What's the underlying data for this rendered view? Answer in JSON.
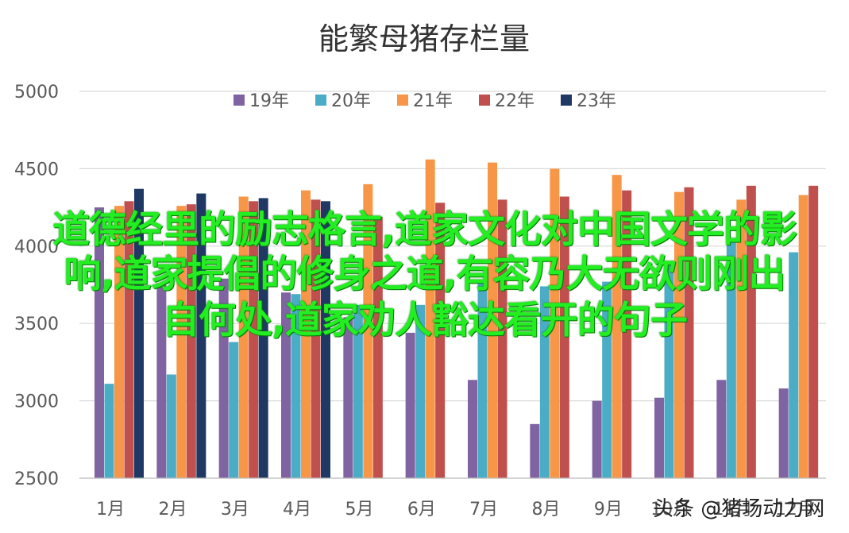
{
  "chart_data": {
    "type": "bar",
    "title": "能繁母猪存栏量",
    "categories": [
      "1月",
      "2月",
      "3月",
      "4月",
      "5月",
      "6月",
      "7月",
      "8月",
      "9月",
      "10月",
      "11月",
      "12月"
    ],
    "ylim": [
      2500,
      5000
    ],
    "yticks": [
      2500,
      3000,
      3500,
      4000,
      4500,
      5000
    ],
    "grid": true,
    "legend_position": "top",
    "series": [
      {
        "name": "19年",
        "color": "#8064a2",
        "values": [
          4250,
          3760,
          3790,
          3700,
          3540,
          3440,
          3135,
          2850,
          3000,
          3020,
          3135,
          3080
        ]
      },
      {
        "name": "20年",
        "color": "#4bacc6",
        "values": [
          3110,
          3170,
          3380,
          3690,
          3620,
          3620,
          3760,
          3740,
          3770,
          3880,
          4050,
          3960
        ]
      },
      {
        "name": "21年",
        "color": "#f79646",
        "values": [
          4260,
          4260,
          4320,
          4360,
          4400,
          4560,
          4540,
          4500,
          4460,
          4350,
          4300,
          4330
        ]
      },
      {
        "name": "22年",
        "color": "#c0504d",
        "values": [
          4290,
          4270,
          4290,
          4300,
          4190,
          4280,
          4300,
          4320,
          4360,
          4380,
          4390,
          4390
        ]
      },
      {
        "name": "23年",
        "color": "#1f3864",
        "values": [
          4370,
          4340,
          4310,
          4290,
          null,
          null,
          null,
          null,
          null,
          null,
          null,
          null
        ]
      }
    ]
  },
  "overlay_lines": [
    "道德经里的励志格言,道家文化对中国文学的影",
    "响,道家提倡的修身之道,有容乃大无欲则刚出",
    "自何处,道家劝人豁达看开的句子"
  ],
  "watermark": "头条 @猪场动力网"
}
